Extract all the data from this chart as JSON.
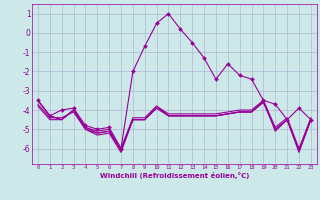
{
  "xlabel": "Windchill (Refroidissement éolien,°C)",
  "background_color": "#cce8e8",
  "grid_color": "#aaaacc",
  "line_color": "#990099",
  "hours": [
    0,
    1,
    2,
    3,
    4,
    5,
    6,
    7,
    8,
    9,
    10,
    11,
    12,
    13,
    14,
    15,
    16,
    17,
    18,
    19,
    20,
    21,
    22,
    23
  ],
  "series": {
    "line1": [
      -3.5,
      -4.3,
      -4.5,
      -4.0,
      -5.0,
      -5.3,
      -5.2,
      -6.2,
      -4.5,
      -4.5,
      -3.8,
      -4.3,
      -4.3,
      -4.3,
      -4.3,
      -4.3,
      -4.2,
      -4.1,
      -4.1,
      -3.5,
      -5.1,
      -4.5,
      -6.2,
      -4.5
    ],
    "line2": [
      -3.5,
      -4.3,
      -4.5,
      -4.0,
      -4.9,
      -5.2,
      -5.1,
      -6.0,
      -4.4,
      -4.4,
      -3.8,
      -4.2,
      -4.2,
      -4.2,
      -4.2,
      -4.2,
      -4.1,
      -4.0,
      -4.0,
      -3.5,
      -4.9,
      -4.4,
      -6.0,
      -4.4
    ],
    "line3": [
      -3.5,
      -4.3,
      -4.0,
      -3.9,
      -4.8,
      -5.0,
      -4.9,
      -6.0,
      -2.0,
      -0.7,
      0.5,
      1.0,
      0.2,
      -0.5,
      -1.3,
      -2.4,
      -1.6,
      -2.2,
      -2.4,
      -3.5,
      -3.7,
      -4.5,
      -3.9,
      -4.5
    ],
    "line4": [
      -3.7,
      -4.4,
      -4.4,
      -4.1,
      -5.0,
      -5.2,
      -5.1,
      -6.1,
      -4.5,
      -4.5,
      -3.9,
      -4.3,
      -4.3,
      -4.3,
      -4.3,
      -4.3,
      -4.2,
      -4.1,
      -4.1,
      -3.6,
      -5.0,
      -4.5,
      -6.1,
      -4.5
    ],
    "line5": [
      -3.8,
      -4.5,
      -4.5,
      -4.0,
      -4.9,
      -5.1,
      -5.0,
      -6.0,
      -4.5,
      -4.5,
      -3.9,
      -4.3,
      -4.3,
      -4.3,
      -4.3,
      -4.3,
      -4.2,
      -4.1,
      -4.1,
      -3.6,
      -5.0,
      -4.5,
      -6.1,
      -4.5
    ]
  },
  "ylim": [
    -6.8,
    1.5
  ],
  "yticks": [
    1,
    0,
    -1,
    -2,
    -3,
    -4,
    -5,
    -6
  ],
  "xlim": [
    -0.5,
    23.5
  ],
  "figsize": [
    3.2,
    2.0
  ],
  "dpi": 100
}
